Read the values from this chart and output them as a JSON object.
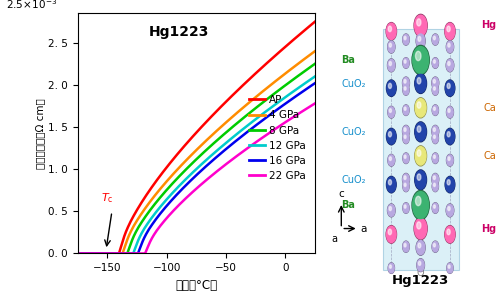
{
  "title": "Hg1223",
  "xlabel": "温度（°C）",
  "ylabel": "電気抗抗率（Ω cm）",
  "xlim": [
    -175,
    25
  ],
  "ylim": [
    0,
    0.00285
  ],
  "yticks": [
    0.0,
    0.0005,
    0.001,
    0.0015,
    0.002,
    0.0025
  ],
  "xticks": [
    -150,
    -100,
    -50,
    0
  ],
  "legend_labels": [
    "AP",
    "4 GPa",
    "8 GPa",
    "12 GPa",
    "16 GPa",
    "22 GPa"
  ],
  "line_colors": [
    "#ff0000",
    "#ff8c00",
    "#00cc00",
    "#00cccc",
    "#0000ee",
    "#ff00cc"
  ],
  "curve_params": [
    {
      "Tc_C": -140,
      "rho_25": 0.00275,
      "curvature": 1.8
    },
    {
      "Tc_C": -137,
      "rho_25": 0.0024,
      "curvature": 1.8
    },
    {
      "Tc_C": -133,
      "rho_25": 0.00225,
      "curvature": 1.8
    },
    {
      "Tc_C": -128,
      "rho_25": 0.0021,
      "curvature": 1.8
    },
    {
      "Tc_C": -124,
      "rho_25": 0.00202,
      "curvature": 1.8
    },
    {
      "Tc_C": -118,
      "rho_25": 0.00178,
      "curvature": 1.8
    }
  ],
  "background_color": "#ffffff",
  "atom_hg_color": "#ff69b4",
  "atom_ba_color": "#3cb371",
  "atom_ca_color": "#e8e87a",
  "atom_cu_color": "#2244aa",
  "atom_o_color": "#b8a8e0",
  "cell_color": "#c8e8f4",
  "label_hg_color": "#cc0066",
  "label_ba_color": "#228b22",
  "label_ca_color": "#cc6600",
  "label_cuo2_color": "#1890cc",
  "label_o_color": "#888888"
}
